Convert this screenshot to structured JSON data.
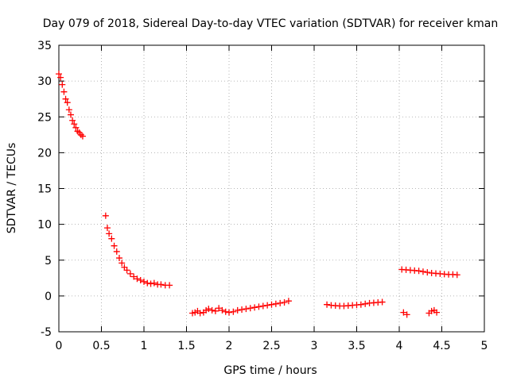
{
  "chart_data": {
    "type": "scatter",
    "title": "Day 079 of 2018, Sidereal Day-to-day VTEC variation (SDTVAR) for receiver kman",
    "xlabel": "GPS time / hours",
    "ylabel": "SDTVAR / TECUs",
    "xlim": [
      0,
      5
    ],
    "ylim": [
      -5,
      35
    ],
    "x_ticks": [
      0,
      0.5,
      1,
      1.5,
      2,
      2.5,
      3,
      3.5,
      4,
      4.5,
      5
    ],
    "x_tick_labels": [
      "0",
      "0.5",
      "1",
      "1.5",
      "2",
      "2.5",
      "3",
      "3.5",
      "4",
      "4.5",
      "5"
    ],
    "y_ticks": [
      -5,
      0,
      5,
      10,
      15,
      20,
      25,
      30,
      35
    ],
    "y_tick_labels": [
      "-5",
      "0",
      "5",
      "10",
      "15",
      "20",
      "25",
      "30",
      "35"
    ],
    "grid": true,
    "marker": "+",
    "color": "#ff0000",
    "series": [
      {
        "name": "kman",
        "x": [
          0.0,
          0.02,
          0.04,
          0.06,
          0.08,
          0.1,
          0.12,
          0.14,
          0.16,
          0.18,
          0.2,
          0.22,
          0.24,
          0.26,
          0.28,
          0.55,
          0.57,
          0.59,
          0.62,
          0.65,
          0.68,
          0.71,
          0.74,
          0.77,
          0.8,
          0.84,
          0.88,
          0.92,
          0.96,
          1.0,
          1.04,
          1.08,
          1.12,
          1.16,
          1.2,
          1.25,
          1.3,
          1.57,
          1.6,
          1.63,
          1.66,
          1.7,
          1.73,
          1.76,
          1.8,
          1.84,
          1.88,
          1.92,
          1.96,
          2.0,
          2.05,
          2.1,
          2.15,
          2.2,
          2.25,
          2.3,
          2.35,
          2.4,
          2.45,
          2.5,
          2.55,
          2.6,
          2.65,
          2.7,
          3.15,
          3.2,
          3.25,
          3.3,
          3.35,
          3.4,
          3.45,
          3.5,
          3.55,
          3.6,
          3.65,
          3.7,
          3.75,
          3.8,
          4.03,
          4.08,
          4.13,
          4.18,
          4.23,
          4.28,
          4.33,
          4.38,
          4.43,
          4.48,
          4.53,
          4.58,
          4.63,
          4.68,
          4.05,
          4.09,
          4.35,
          4.38,
          4.41,
          4.44
        ],
        "y": [
          31.0,
          30.5,
          29.5,
          28.5,
          27.5,
          27.0,
          26.0,
          25.3,
          24.5,
          24.0,
          23.5,
          23.0,
          22.8,
          22.5,
          22.3,
          11.2,
          9.5,
          8.7,
          8.0,
          7.0,
          6.2,
          5.3,
          4.6,
          4.0,
          3.6,
          3.1,
          2.7,
          2.4,
          2.2,
          2.0,
          1.8,
          1.7,
          1.8,
          1.6,
          1.6,
          1.5,
          1.5,
          -2.4,
          -2.3,
          -2.1,
          -2.4,
          -2.3,
          -2.0,
          -1.8,
          -2.0,
          -2.1,
          -1.7,
          -2.0,
          -2.2,
          -2.3,
          -2.2,
          -2.0,
          -1.9,
          -1.8,
          -1.7,
          -1.6,
          -1.5,
          -1.4,
          -1.3,
          -1.2,
          -1.1,
          -1.0,
          -0.9,
          -0.7,
          -1.2,
          -1.3,
          -1.35,
          -1.4,
          -1.4,
          -1.35,
          -1.3,
          -1.25,
          -1.2,
          -1.1,
          -1.0,
          -0.95,
          -0.9,
          -0.85,
          3.7,
          3.65,
          3.6,
          3.55,
          3.5,
          3.4,
          3.3,
          3.2,
          3.15,
          3.1,
          3.05,
          3.0,
          3.0,
          2.95,
          -2.3,
          -2.6,
          -2.4,
          -2.1,
          -2.0,
          -2.3
        ]
      }
    ]
  }
}
